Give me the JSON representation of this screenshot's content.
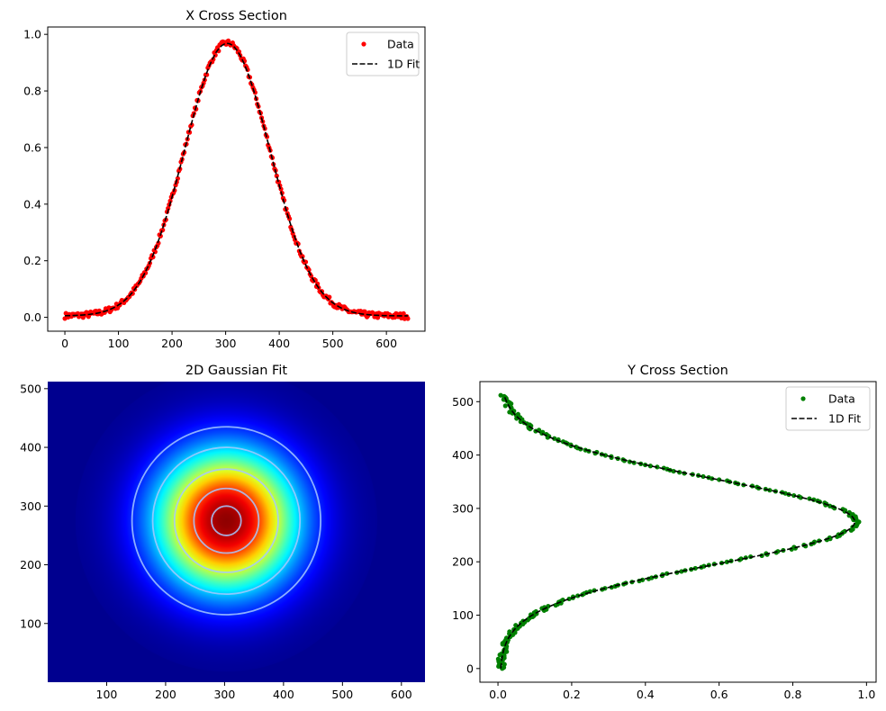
{
  "chart_data": [
    {
      "id": "x-cross-section",
      "type": "scatter",
      "title": "X Cross Section",
      "xlim": [
        -32,
        672
      ],
      "ylim": [
        -0.049,
        1.026
      ],
      "xticks": [
        0,
        100,
        200,
        300,
        400,
        500,
        600
      ],
      "yticks": [
        0.0,
        0.2,
        0.4,
        0.6,
        0.8,
        1.0
      ],
      "ytick_labels": [
        "0.0",
        "0.2",
        "0.4",
        "0.6",
        "0.8",
        "1.0"
      ],
      "legend": {
        "placement": "upper-right",
        "entries": [
          "Data",
          "1D Fit"
        ]
      },
      "series": [
        {
          "name": "Data",
          "kind": "points",
          "color": "#ff0000",
          "model": {
            "amplitude": 0.965,
            "center": 303,
            "sigma": 80,
            "offset": 0.005,
            "x_range": [
              0,
              640
            ],
            "count": 320
          }
        },
        {
          "name": "1D Fit",
          "kind": "dashed-line",
          "color": "#000000",
          "model": {
            "amplitude": 0.963,
            "center": 303,
            "sigma": 80,
            "offset": 0.005,
            "x_range": [
              0,
              640
            ]
          }
        }
      ]
    },
    {
      "id": "gaussian-2d-fit",
      "type": "heatmap",
      "title": "2D Gaussian Fit",
      "xlim": [
        0,
        640
      ],
      "ylim": [
        0,
        512
      ],
      "xticks": [
        100,
        200,
        300,
        400,
        500,
        600
      ],
      "yticks": [
        100,
        200,
        300,
        400,
        500
      ],
      "colormap": "jet",
      "model": {
        "center_x": 303,
        "center_y": 275,
        "sigma": 80
      },
      "contours": {
        "color": "#a6c8ff",
        "radii": [
          25,
          55,
          88,
          125,
          160
        ]
      }
    },
    {
      "id": "y-cross-section",
      "type": "scatter",
      "title": "Y Cross Section",
      "xlim": [
        -0.049,
        1.026
      ],
      "ylim": [
        -25.6,
        537.6
      ],
      "xticks": [
        0.0,
        0.2,
        0.4,
        0.6,
        0.8,
        1.0
      ],
      "xtick_labels": [
        "0.0",
        "0.2",
        "0.4",
        "0.6",
        "0.8",
        "1.0"
      ],
      "yticks": [
        0,
        100,
        200,
        300,
        400,
        500
      ],
      "legend": {
        "placement": "upper-right",
        "entries": [
          "Data",
          "1D Fit"
        ]
      },
      "series": [
        {
          "name": "Data",
          "kind": "points",
          "color": "#008000",
          "model": {
            "amplitude": 0.965,
            "center": 275,
            "sigma": 80,
            "offset": 0.005,
            "y_range": [
              0,
              512
            ],
            "count": 260
          }
        },
        {
          "name": "1D Fit",
          "kind": "dashed-line",
          "color": "#000000",
          "model": {
            "amplitude": 0.963,
            "center": 275,
            "sigma": 80,
            "offset": 0.005,
            "y_range": [
              0,
              512
            ]
          }
        }
      ]
    }
  ]
}
